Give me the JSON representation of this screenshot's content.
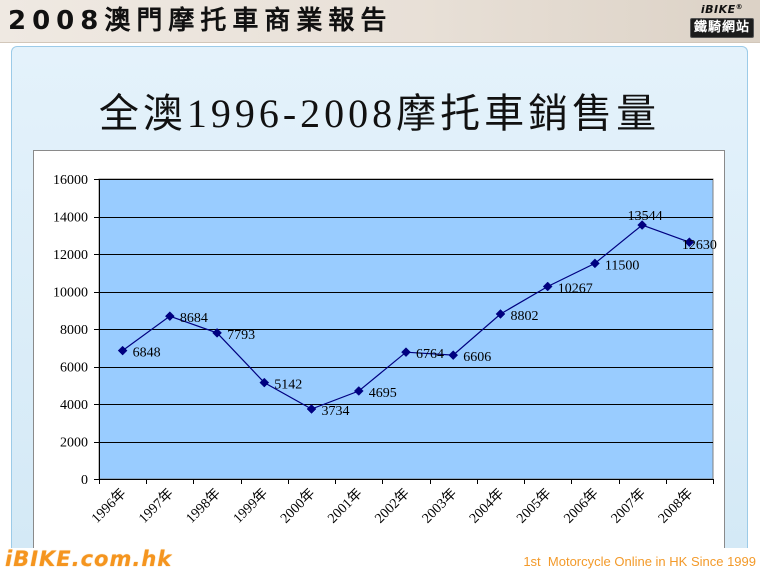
{
  "header": {
    "title": "2008澳門摩托車商業報告",
    "logo_brand": "iBIKE",
    "logo_registered": "®",
    "logo_subtitle": "鐵騎網站"
  },
  "chart_data": {
    "type": "line",
    "title": "全澳1996-2008摩托車銷售量",
    "xlabel": "",
    "ylabel": "",
    "categories": [
      "1996年",
      "1997年",
      "1998年",
      "1999年",
      "2000年",
      "2001年",
      "2002年",
      "2003年",
      "2004年",
      "2005年",
      "2006年",
      "2007年",
      "2008年"
    ],
    "values": [
      6848,
      8684,
      7793,
      5142,
      3734,
      4695,
      6764,
      6606,
      8802,
      10267,
      11500,
      13544,
      12630
    ],
    "ylim": [
      0,
      16000
    ],
    "yticks": [
      0,
      2000,
      4000,
      6000,
      8000,
      10000,
      12000,
      14000,
      16000
    ],
    "grid": true,
    "legend": "none",
    "data_labels": true,
    "marker": "diamond",
    "colors": {
      "line": "#000080",
      "marker": "#000080",
      "plot_bg": "#99ccff",
      "grid": "#000000"
    }
  },
  "footer": {
    "site": "iBIKE.com.hk",
    "tagline": "1st  Motorcycle Online in HK Since 1999"
  }
}
